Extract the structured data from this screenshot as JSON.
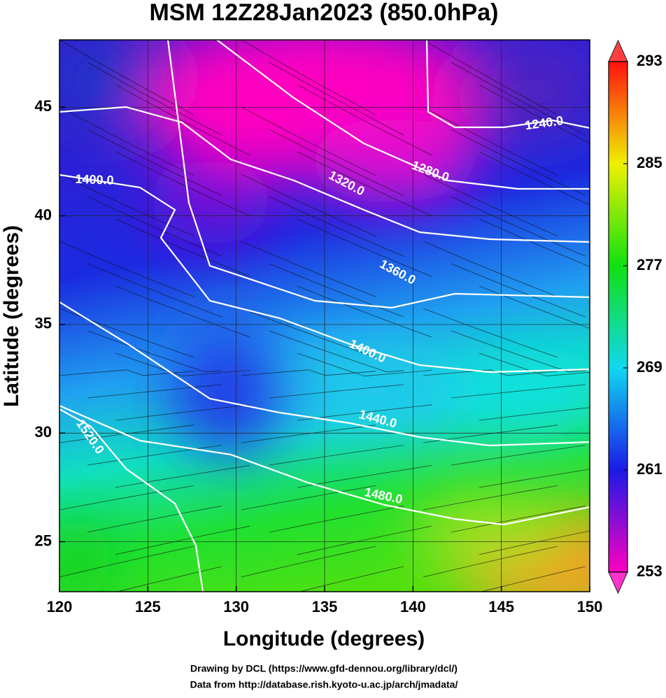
{
  "chart_data": {
    "type": "map",
    "title": "MSM 12Z28Jan2023 (850.0hPa)",
    "x_label": "Longitude (degrees)",
    "y_label": "Latitude  (degrees)",
    "xlim": [
      120,
      150
    ],
    "ylim": [
      22.7,
      48.1
    ],
    "xticks": [
      120,
      125,
      130,
      135,
      140,
      145,
      150
    ],
    "yticks": [
      25,
      30,
      35,
      40,
      45
    ],
    "grid": true,
    "colorbar": {
      "lim": [
        253,
        293
      ],
      "ticks": [
        253,
        261,
        269,
        277,
        285,
        293
      ],
      "colors": [
        "#ff00c0",
        "#1a1ae6",
        "#10d8f0",
        "#10e010",
        "#f0f000",
        "#ff1010"
      ]
    },
    "contours": [
      {
        "value": 1240,
        "label": "1240.0"
      },
      {
        "value": 1280,
        "label": "1280.0"
      },
      {
        "value": 1320,
        "label": "1320.0"
      },
      {
        "value": 1360,
        "label": "1360.0"
      },
      {
        "value": 1400,
        "label": "1400.0"
      },
      {
        "value": 1440,
        "label": "1440.0"
      },
      {
        "value": 1480,
        "label": "1480.0"
      },
      {
        "value": 1520,
        "label": "1520.0"
      }
    ],
    "footer": [
      "Drawing by DCL (https://www.gfd-dennou.org/library/dcl/)",
      "Data from http://database.rish.kyoto-u.ac.jp/arch/jmadata/"
    ]
  }
}
